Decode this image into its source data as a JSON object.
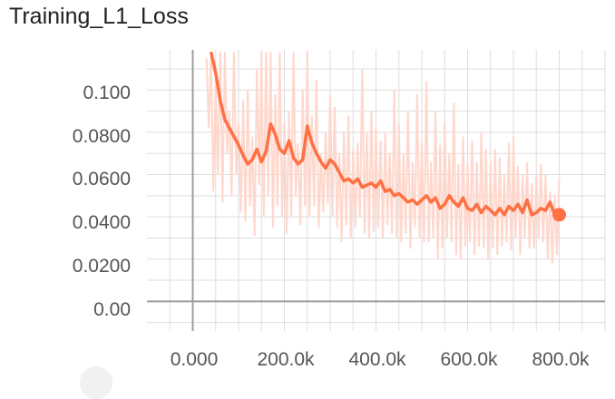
{
  "chart_data": {
    "type": "line",
    "title": "Training_L1_Loss",
    "xlabel": "",
    "ylabel": "",
    "xlim": [
      -100000,
      900000
    ],
    "ylim": [
      -0.014,
      0.119
    ],
    "x_ticks": [
      0,
      200000,
      400000,
      600000,
      800000
    ],
    "x_tick_labels": [
      "0.000",
      "200.0k",
      "400.0k",
      "600.0k",
      "800.0k"
    ],
    "y_ticks": [
      0.0,
      0.02,
      0.04,
      0.06,
      0.08,
      0.1
    ],
    "y_tick_labels": [
      "0.00",
      "0.0200",
      "0.0400",
      "0.0600",
      "0.0800",
      "0.100"
    ],
    "grid": true,
    "legend": "none",
    "series": [
      {
        "role": "smoothed",
        "color": "#ff7043",
        "x": [
          40000,
          50000,
          60000,
          70000,
          80000,
          90000,
          100000,
          110000,
          120000,
          130000,
          140000,
          150000,
          160000,
          170000,
          180000,
          190000,
          200000,
          210000,
          220000,
          230000,
          240000,
          250000,
          260000,
          270000,
          280000,
          290000,
          300000,
          310000,
          320000,
          330000,
          340000,
          350000,
          360000,
          370000,
          380000,
          390000,
          400000,
          410000,
          420000,
          430000,
          440000,
          450000,
          460000,
          470000,
          480000,
          490000,
          500000,
          510000,
          520000,
          530000,
          540000,
          550000,
          560000,
          570000,
          580000,
          590000,
          600000,
          610000,
          620000,
          630000,
          640000,
          650000,
          660000,
          670000,
          680000,
          690000,
          700000,
          710000,
          720000,
          730000,
          740000,
          750000,
          760000,
          770000,
          780000,
          790000,
          800000
        ],
        "values": [
          0.118,
          0.108,
          0.095,
          0.086,
          0.082,
          0.078,
          0.074,
          0.069,
          0.065,
          0.067,
          0.072,
          0.066,
          0.071,
          0.084,
          0.079,
          0.072,
          0.07,
          0.076,
          0.068,
          0.065,
          0.067,
          0.083,
          0.075,
          0.07,
          0.066,
          0.063,
          0.067,
          0.065,
          0.061,
          0.057,
          0.058,
          0.056,
          0.058,
          0.054,
          0.055,
          0.056,
          0.054,
          0.057,
          0.052,
          0.053,
          0.05,
          0.051,
          0.049,
          0.047,
          0.048,
          0.046,
          0.048,
          0.05,
          0.047,
          0.049,
          0.044,
          0.046,
          0.05,
          0.047,
          0.045,
          0.049,
          0.044,
          0.043,
          0.046,
          0.042,
          0.045,
          0.043,
          0.041,
          0.044,
          0.041,
          0.045,
          0.043,
          0.046,
          0.042,
          0.048,
          0.041,
          0.042,
          0.044,
          0.043,
          0.047,
          0.041,
          0.041
        ]
      },
      {
        "role": "raw",
        "color": "#ffd7cc",
        "x": [
          30000,
          35000,
          40000,
          45000,
          50000,
          55000,
          60000,
          65000,
          70000,
          75000,
          80000,
          85000,
          90000,
          95000,
          100000,
          105000,
          110000,
          115000,
          120000,
          125000,
          130000,
          135000,
          140000,
          145000,
          150000,
          155000,
          160000,
          165000,
          170000,
          175000,
          180000,
          185000,
          190000,
          195000,
          200000,
          205000,
          210000,
          215000,
          220000,
          225000,
          230000,
          235000,
          240000,
          245000,
          250000,
          255000,
          260000,
          265000,
          270000,
          275000,
          280000,
          285000,
          290000,
          295000,
          300000,
          305000,
          310000,
          315000,
          320000,
          325000,
          330000,
          335000,
          340000,
          345000,
          350000,
          355000,
          360000,
          365000,
          370000,
          375000,
          380000,
          385000,
          390000,
          395000,
          400000,
          405000,
          410000,
          415000,
          420000,
          425000,
          430000,
          435000,
          440000,
          445000,
          450000,
          455000,
          460000,
          465000,
          470000,
          475000,
          480000,
          485000,
          490000,
          495000,
          500000,
          505000,
          510000,
          515000,
          520000,
          525000,
          530000,
          535000,
          540000,
          545000,
          550000,
          555000,
          560000,
          565000,
          570000,
          575000,
          580000,
          585000,
          590000,
          595000,
          600000,
          605000,
          610000,
          615000,
          620000,
          625000,
          630000,
          635000,
          640000,
          645000,
          650000,
          655000,
          660000,
          665000,
          670000,
          675000,
          680000,
          685000,
          690000,
          695000,
          700000,
          705000,
          710000,
          715000,
          720000,
          725000,
          730000,
          735000,
          740000,
          745000,
          750000,
          755000,
          760000,
          765000,
          770000,
          775000,
          780000,
          785000,
          790000,
          795000,
          800000
        ],
        "values": [
          0.115,
          0.082,
          0.118,
          0.052,
          0.105,
          0.06,
          0.118,
          0.047,
          0.118,
          0.07,
          0.09,
          0.05,
          0.118,
          0.06,
          0.085,
          0.042,
          0.095,
          0.038,
          0.1,
          0.045,
          0.078,
          0.031,
          0.11,
          0.055,
          0.118,
          0.04,
          0.118,
          0.05,
          0.118,
          0.035,
          0.098,
          0.045,
          0.118,
          0.04,
          0.085,
          0.032,
          0.09,
          0.04,
          0.118,
          0.05,
          0.075,
          0.036,
          0.1,
          0.045,
          0.118,
          0.04,
          0.088,
          0.045,
          0.105,
          0.035,
          0.07,
          0.042,
          0.08,
          0.046,
          0.098,
          0.04,
          0.092,
          0.035,
          0.07,
          0.028,
          0.08,
          0.036,
          0.088,
          0.03,
          0.072,
          0.035,
          0.075,
          0.04,
          0.11,
          0.032,
          0.08,
          0.03,
          0.09,
          0.033,
          0.082,
          0.035,
          0.076,
          0.03,
          0.08,
          0.036,
          0.07,
          0.032,
          0.1,
          0.03,
          0.084,
          0.028,
          0.07,
          0.032,
          0.09,
          0.025,
          0.066,
          0.035,
          0.098,
          0.03,
          0.075,
          0.028,
          0.104,
          0.028,
          0.066,
          0.03,
          0.09,
          0.02,
          0.074,
          0.025,
          0.085,
          0.03,
          0.07,
          0.028,
          0.094,
          0.022,
          0.065,
          0.02,
          0.078,
          0.026,
          0.065,
          0.028,
          0.076,
          0.022,
          0.066,
          0.026,
          0.08,
          0.025,
          0.072,
          0.02,
          0.066,
          0.025,
          0.072,
          0.022,
          0.068,
          0.026,
          0.06,
          0.028,
          0.075,
          0.024,
          0.078,
          0.03,
          0.064,
          0.022,
          0.06,
          0.03,
          0.066,
          0.025,
          0.056,
          0.025,
          0.06,
          0.03,
          0.065,
          0.028,
          0.06,
          0.02,
          0.052,
          0.018,
          0.05,
          0.022,
          0.058
        ]
      }
    ]
  }
}
